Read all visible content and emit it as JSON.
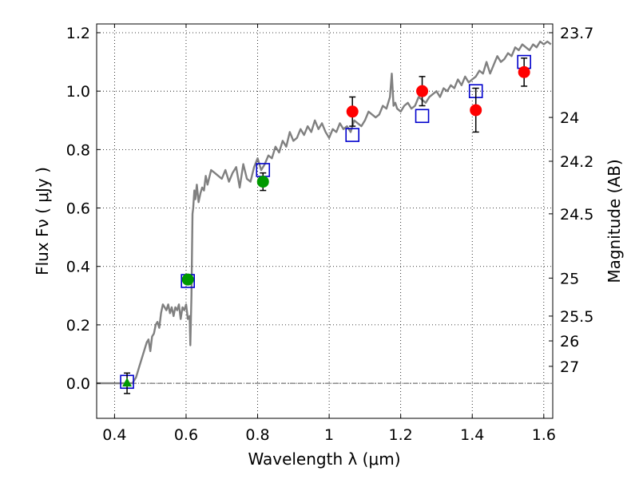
{
  "chart_data": {
    "type": "line",
    "xlabel": "Wavelength  λ (μm)",
    "ylabel": "Flux  Fν  ( μJy )",
    "ylabel_right": "Magnitude (AB)",
    "xlim": [
      0.35,
      1.625
    ],
    "ylim": [
      -0.12,
      1.23
    ],
    "grid": true,
    "x_ticks": [
      0.4,
      0.6,
      0.8,
      1.0,
      1.2,
      1.4,
      1.6
    ],
    "x_tick_labels": [
      "0.4",
      "0.6",
      "0.8",
      "1",
      "1.2",
      "1.4",
      "1.6"
    ],
    "y_ticks": [
      0.0,
      0.2,
      0.4,
      0.6,
      0.8,
      1.0,
      1.2
    ],
    "y_tick_labels": [
      "0.0",
      "0.2",
      "0.4",
      "0.6",
      "0.8",
      "1.0",
      "1.2"
    ],
    "right_ticks": [
      {
        "label": "23.7",
        "flux": 1.2
      },
      {
        "label": "24",
        "flux": 0.91
      },
      {
        "label": "24.2",
        "flux": 0.76
      },
      {
        "label": "24.5",
        "flux": 0.58
      },
      {
        "label": "25",
        "flux": 0.36
      },
      {
        "label": "25.5",
        "flux": 0.23
      },
      {
        "label": "26",
        "flux": 0.145
      },
      {
        "label": "27",
        "flux": 0.058
      }
    ],
    "baseline": 0.0,
    "model_color": "#808080",
    "model_spectrum": {
      "x": [
        0.35,
        0.45,
        0.46,
        0.47,
        0.48,
        0.49,
        0.495,
        0.5,
        0.505,
        0.51,
        0.515,
        0.52,
        0.525,
        0.53,
        0.535,
        0.54,
        0.545,
        0.55,
        0.555,
        0.56,
        0.565,
        0.57,
        0.575,
        0.58,
        0.585,
        0.59,
        0.595,
        0.6,
        0.605,
        0.61,
        0.612,
        0.615,
        0.618,
        0.62,
        0.623,
        0.626,
        0.63,
        0.635,
        0.64,
        0.645,
        0.65,
        0.655,
        0.66,
        0.67,
        0.68,
        0.69,
        0.7,
        0.71,
        0.72,
        0.73,
        0.74,
        0.75,
        0.76,
        0.77,
        0.78,
        0.79,
        0.8,
        0.81,
        0.82,
        0.83,
        0.84,
        0.85,
        0.86,
        0.87,
        0.88,
        0.89,
        0.9,
        0.91,
        0.92,
        0.93,
        0.94,
        0.95,
        0.96,
        0.97,
        0.98,
        0.99,
        1.0,
        1.01,
        1.02,
        1.03,
        1.04,
        1.05,
        1.06,
        1.07,
        1.08,
        1.09,
        1.1,
        1.11,
        1.12,
        1.13,
        1.14,
        1.15,
        1.16,
        1.17,
        1.175,
        1.18,
        1.185,
        1.19,
        1.2,
        1.21,
        1.22,
        1.23,
        1.24,
        1.25,
        1.26,
        1.27,
        1.28,
        1.29,
        1.3,
        1.31,
        1.32,
        1.33,
        1.34,
        1.35,
        1.36,
        1.37,
        1.38,
        1.39,
        1.4,
        1.41,
        1.42,
        1.43,
        1.44,
        1.45,
        1.46,
        1.47,
        1.48,
        1.49,
        1.5,
        1.51,
        1.52,
        1.53,
        1.54,
        1.55,
        1.56,
        1.57,
        1.58,
        1.59,
        1.6,
        1.61,
        1.62
      ],
      "y": [
        0.0,
        0.0,
        0.02,
        0.06,
        0.1,
        0.14,
        0.15,
        0.11,
        0.16,
        0.17,
        0.2,
        0.21,
        0.19,
        0.24,
        0.27,
        0.26,
        0.25,
        0.27,
        0.24,
        0.26,
        0.23,
        0.26,
        0.25,
        0.27,
        0.22,
        0.26,
        0.25,
        0.27,
        0.22,
        0.23,
        0.13,
        0.3,
        0.58,
        0.6,
        0.66,
        0.63,
        0.68,
        0.62,
        0.65,
        0.67,
        0.66,
        0.71,
        0.68,
        0.73,
        0.72,
        0.71,
        0.7,
        0.73,
        0.69,
        0.72,
        0.74,
        0.67,
        0.75,
        0.7,
        0.69,
        0.74,
        0.77,
        0.73,
        0.75,
        0.78,
        0.77,
        0.81,
        0.79,
        0.83,
        0.81,
        0.86,
        0.83,
        0.84,
        0.87,
        0.85,
        0.88,
        0.86,
        0.9,
        0.87,
        0.89,
        0.86,
        0.84,
        0.87,
        0.86,
        0.89,
        0.87,
        0.88,
        0.86,
        0.9,
        0.89,
        0.88,
        0.9,
        0.93,
        0.92,
        0.91,
        0.92,
        0.95,
        0.94,
        0.98,
        1.06,
        0.95,
        0.96,
        0.94,
        0.93,
        0.95,
        0.96,
        0.94,
        0.95,
        0.98,
        0.97,
        0.96,
        0.98,
        0.99,
        1.0,
        0.98,
        1.01,
        1.0,
        1.02,
        1.01,
        1.04,
        1.02,
        1.05,
        1.03,
        1.04,
        1.05,
        1.07,
        1.06,
        1.1,
        1.06,
        1.09,
        1.12,
        1.1,
        1.11,
        1.13,
        1.12,
        1.15,
        1.14,
        1.16,
        1.15,
        1.14,
        1.16,
        1.15,
        1.17,
        1.16,
        1.17,
        1.16
      ]
    },
    "model_boxes": {
      "color": "#0000cc",
      "points": [
        {
          "x": 0.435,
          "y": 0.005
        },
        {
          "x": 0.605,
          "y": 0.35
        },
        {
          "x": 0.815,
          "y": 0.73
        },
        {
          "x": 1.065,
          "y": 0.85
        },
        {
          "x": 1.26,
          "y": 0.915
        },
        {
          "x": 1.41,
          "y": 1.0
        },
        {
          "x": 1.545,
          "y": 1.1
        }
      ]
    },
    "observations": [
      {
        "x": 0.435,
        "y": 0.0,
        "err": 0.035,
        "color": "#009900",
        "marker": "triangle"
      },
      {
        "x": 0.605,
        "y": 0.355,
        "err": 0.0,
        "color": "#009900",
        "marker": "circle"
      },
      {
        "x": 0.815,
        "y": 0.69,
        "err": 0.03,
        "color": "#009900",
        "marker": "circle"
      },
      {
        "x": 1.065,
        "y": 0.93,
        "err": 0.05,
        "color": "#ff0000",
        "marker": "circle"
      },
      {
        "x": 1.26,
        "y": 1.0,
        "err": 0.05,
        "color": "#ff0000",
        "marker": "circle"
      },
      {
        "x": 1.41,
        "y": 0.935,
        "err": 0.075,
        "color": "#ff0000",
        "marker": "circle"
      },
      {
        "x": 1.545,
        "y": 1.065,
        "err": 0.048,
        "color": "#ff0000",
        "marker": "circle"
      }
    ]
  }
}
